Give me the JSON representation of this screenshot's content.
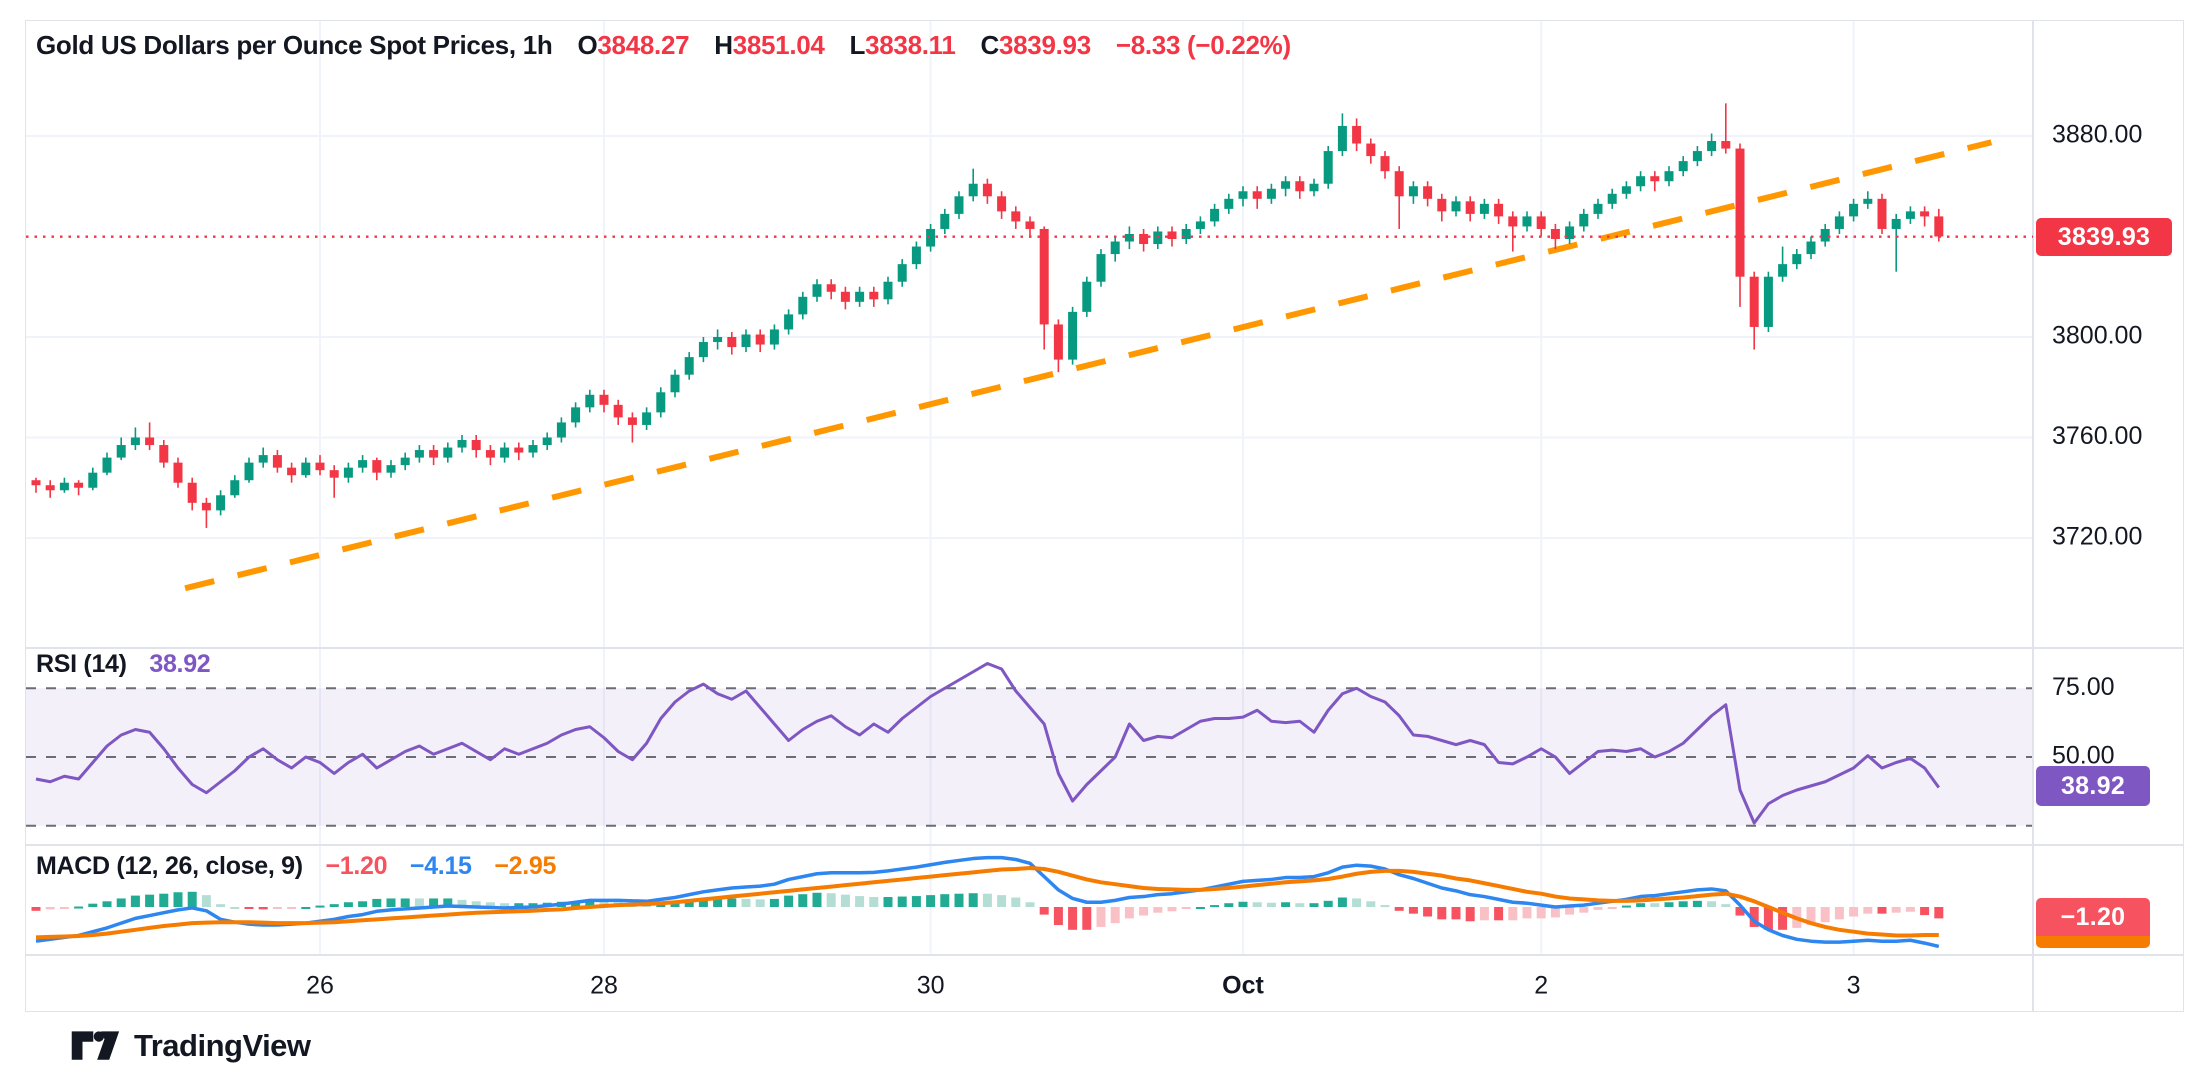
{
  "header": {
    "title": "Gold US Dollars per Ounce Spot Prices, 1h",
    "ohlc": {
      "o_label": "O",
      "o": "3848.27",
      "h_label": "H",
      "h": "3851.04",
      "l_label": "L",
      "l": "3838.11",
      "c_label": "C",
      "c": "3839.93",
      "change": "−8.33 (−0.22%)"
    }
  },
  "price_axis": {
    "ticks": [
      {
        "price": 3880,
        "label": "3880.00"
      },
      {
        "price": 3800,
        "label": "3800.00"
      },
      {
        "price": 3760,
        "label": "3760.00"
      },
      {
        "price": 3720,
        "label": "3720.00"
      }
    ],
    "last_price_badge": "3839.93"
  },
  "rsi_panel": {
    "label": "RSI (14)",
    "value": "38.92",
    "badge": "38.92",
    "levels": [
      {
        "value": 75,
        "label": "75.00"
      },
      {
        "value": 50,
        "label": "50.00"
      },
      {
        "value": 25,
        "label": ""
      }
    ]
  },
  "macd_panel": {
    "label": "MACD (12, 26, close, 9)",
    "hist_value": "−1.20",
    "macd_value": "−4.15",
    "signal_value": "−2.95",
    "badge": "−1.20"
  },
  "time_axis": {
    "ticks": [
      {
        "index": 20,
        "label": "26",
        "bold": false
      },
      {
        "index": 40,
        "label": "28",
        "bold": false
      },
      {
        "index": 63,
        "label": "30",
        "bold": false
      },
      {
        "index": 85,
        "label": "Oct",
        "bold": true
      },
      {
        "index": 106,
        "label": "2",
        "bold": false
      },
      {
        "index": 128,
        "label": "3",
        "bold": false
      }
    ]
  },
  "footer": {
    "brand": "TradingView"
  },
  "colors": {
    "up": "#089981",
    "down": "#f23645",
    "rsi_line": "#7e57c2",
    "rsi_band": "rgba(126,87,194,0.09)",
    "macd_line": "#2e86f0",
    "signal_line": "#f57c00",
    "hist_grow_above": "#22ab94",
    "hist_fall_above": "#b4ddd4",
    "hist_fall_below": "#f7525f",
    "hist_grow_below": "#f9c1c6",
    "trendline": "#ff9800",
    "last_price_line": "#f23645",
    "grid": "#f0f3fa",
    "separator": "#e0e3eb",
    "level_dash": "#6a6d78",
    "text": "#131722",
    "badge_price_bg": "#f23645",
    "badge_rsi_bg": "#7e57c2",
    "badge_macd_bg": "#f7525f",
    "badge_macd_strip": "#f57c00"
  },
  "chart_data": {
    "type": "candlestick",
    "title": "Gold US Dollars per Ounce Spot Prices, 1h",
    "timeframe": "1h",
    "price_range": [
      3676,
      3926
    ],
    "last_bar": {
      "open": 3848.27,
      "high": 3851.04,
      "low": 3838.11,
      "close": 3839.93
    },
    "last_price": 3839.93,
    "trendline": {
      "start": {
        "index": 10.5,
        "price": 3700
      },
      "end": {
        "index": 137.7,
        "price": 3877.5
      }
    },
    "candles": [
      [
        3743,
        3744,
        3738,
        3741
      ],
      [
        3741,
        3743,
        3736,
        3739
      ],
      [
        3739,
        3744,
        3738,
        3742
      ],
      [
        3742,
        3743,
        3737,
        3740
      ],
      [
        3740,
        3748,
        3739,
        3746
      ],
      [
        3746,
        3754,
        3745,
        3752
      ],
      [
        3752,
        3760,
        3751,
        3757
      ],
      [
        3757,
        3764,
        3755,
        3760
      ],
      [
        3760,
        3766,
        3755,
        3757
      ],
      [
        3757,
        3759,
        3748,
        3750
      ],
      [
        3750,
        3752,
        3740,
        3742
      ],
      [
        3742,
        3744,
        3731,
        3734
      ],
      [
        3734,
        3736,
        3724,
        3731
      ],
      [
        3731,
        3739,
        3729,
        3737
      ],
      [
        3737,
        3745,
        3736,
        3743
      ],
      [
        3743,
        3752,
        3742,
        3750
      ],
      [
        3750,
        3756,
        3748,
        3753
      ],
      [
        3753,
        3755,
        3746,
        3748
      ],
      [
        3748,
        3750,
        3742,
        3745
      ],
      [
        3745,
        3752,
        3744,
        3750
      ],
      [
        3750,
        3753,
        3745,
        3747
      ],
      [
        3747,
        3749,
        3736,
        3744
      ],
      [
        3744,
        3750,
        3742,
        3748
      ],
      [
        3748,
        3753,
        3746,
        3751
      ],
      [
        3751,
        3752,
        3743,
        3746
      ],
      [
        3746,
        3751,
        3744,
        3749
      ],
      [
        3749,
        3754,
        3747,
        3752
      ],
      [
        3752,
        3757,
        3750,
        3755
      ],
      [
        3755,
        3757,
        3749,
        3752
      ],
      [
        3752,
        3758,
        3750,
        3756
      ],
      [
        3756,
        3761,
        3754,
        3759
      ],
      [
        3759,
        3761,
        3752,
        3755
      ],
      [
        3755,
        3757,
        3749,
        3752
      ],
      [
        3752,
        3758,
        3750,
        3756
      ],
      [
        3756,
        3758,
        3751,
        3754
      ],
      [
        3754,
        3759,
        3752,
        3757
      ],
      [
        3757,
        3762,
        3755,
        3760
      ],
      [
        3760,
        3768,
        3758,
        3766
      ],
      [
        3766,
        3774,
        3764,
        3772
      ],
      [
        3772,
        3779,
        3770,
        3777
      ],
      [
        3777,
        3779,
        3770,
        3773
      ],
      [
        3773,
        3775,
        3765,
        3768
      ],
      [
        3768,
        3770,
        3758,
        3765
      ],
      [
        3765,
        3772,
        3763,
        3770
      ],
      [
        3770,
        3780,
        3768,
        3778
      ],
      [
        3778,
        3787,
        3776,
        3785
      ],
      [
        3785,
        3794,
        3783,
        3792
      ],
      [
        3792,
        3800,
        3790,
        3798
      ],
      [
        3798,
        3803,
        3795,
        3800
      ],
      [
        3800,
        3802,
        3793,
        3796
      ],
      [
        3796,
        3803,
        3794,
        3801
      ],
      [
        3801,
        3803,
        3794,
        3797
      ],
      [
        3797,
        3805,
        3795,
        3803
      ],
      [
        3803,
        3811,
        3801,
        3809
      ],
      [
        3809,
        3818,
        3807,
        3816
      ],
      [
        3816,
        3823,
        3814,
        3821
      ],
      [
        3821,
        3823,
        3815,
        3818
      ],
      [
        3818,
        3820,
        3811,
        3814
      ],
      [
        3814,
        3820,
        3812,
        3818
      ],
      [
        3818,
        3820,
        3812,
        3815
      ],
      [
        3815,
        3824,
        3813,
        3822
      ],
      [
        3822,
        3831,
        3820,
        3829
      ],
      [
        3829,
        3838,
        3827,
        3836
      ],
      [
        3836,
        3845,
        3834,
        3843
      ],
      [
        3843,
        3851,
        3841,
        3849
      ],
      [
        3849,
        3858,
        3847,
        3856
      ],
      [
        3856,
        3867,
        3854,
        3861
      ],
      [
        3861,
        3863,
        3853,
        3856
      ],
      [
        3856,
        3858,
        3847,
        3850
      ],
      [
        3850,
        3852,
        3843,
        3846
      ],
      [
        3846,
        3848,
        3840,
        3843
      ],
      [
        3843,
        3844,
        3795,
        3805
      ],
      [
        3805,
        3807,
        3786,
        3791
      ],
      [
        3791,
        3812,
        3789,
        3810
      ],
      [
        3810,
        3824,
        3808,
        3822
      ],
      [
        3822,
        3835,
        3820,
        3833
      ],
      [
        3833,
        3840,
        3830,
        3838
      ],
      [
        3838,
        3844,
        3835,
        3841
      ],
      [
        3841,
        3843,
        3834,
        3837
      ],
      [
        3837,
        3844,
        3835,
        3842
      ],
      [
        3842,
        3844,
        3836,
        3839
      ],
      [
        3839,
        3845,
        3837,
        3843
      ],
      [
        3843,
        3848,
        3841,
        3846
      ],
      [
        3846,
        3853,
        3844,
        3851
      ],
      [
        3851,
        3857,
        3849,
        3855
      ],
      [
        3855,
        3860,
        3852,
        3858
      ],
      [
        3858,
        3860,
        3851,
        3855
      ],
      [
        3855,
        3861,
        3853,
        3859
      ],
      [
        3859,
        3864,
        3856,
        3862
      ],
      [
        3862,
        3864,
        3855,
        3858
      ],
      [
        3858,
        3863,
        3856,
        3861
      ],
      [
        3861,
        3876,
        3859,
        3874
      ],
      [
        3874,
        3889,
        3872,
        3884
      ],
      [
        3884,
        3887,
        3874,
        3877
      ],
      [
        3877,
        3879,
        3869,
        3872
      ],
      [
        3872,
        3874,
        3863,
        3866
      ],
      [
        3866,
        3868,
        3843,
        3856
      ],
      [
        3856,
        3862,
        3853,
        3860
      ],
      [
        3860,
        3862,
        3852,
        3855
      ],
      [
        3855,
        3857,
        3846,
        3850
      ],
      [
        3850,
        3856,
        3848,
        3854
      ],
      [
        3854,
        3856,
        3846,
        3849
      ],
      [
        3849,
        3855,
        3847,
        3853
      ],
      [
        3853,
        3855,
        3845,
        3848
      ],
      [
        3848,
        3850,
        3834,
        3844
      ],
      [
        3844,
        3850,
        3842,
        3848
      ],
      [
        3848,
        3850,
        3840,
        3843
      ],
      [
        3843,
        3845,
        3835,
        3839
      ],
      [
        3839,
        3846,
        3837,
        3844
      ],
      [
        3844,
        3851,
        3842,
        3849
      ],
      [
        3849,
        3855,
        3847,
        3853
      ],
      [
        3853,
        3859,
        3851,
        3857
      ],
      [
        3857,
        3862,
        3855,
        3860
      ],
      [
        3860,
        3866,
        3858,
        3864
      ],
      [
        3864,
        3866,
        3858,
        3862
      ],
      [
        3862,
        3868,
        3860,
        3866
      ],
      [
        3866,
        3872,
        3864,
        3870
      ],
      [
        3870,
        3876,
        3868,
        3874
      ],
      [
        3874,
        3881,
        3872,
        3878
      ],
      [
        3878,
        3893,
        3873,
        3875
      ],
      [
        3875,
        3877,
        3812,
        3824
      ],
      [
        3824,
        3826,
        3795,
        3804
      ],
      [
        3804,
        3826,
        3802,
        3824
      ],
      [
        3824,
        3836,
        3822,
        3829
      ],
      [
        3829,
        3835,
        3827,
        3833
      ],
      [
        3833,
        3840,
        3831,
        3838
      ],
      [
        3838,
        3845,
        3836,
        3843
      ],
      [
        3843,
        3850,
        3841,
        3848
      ],
      [
        3848,
        3855,
        3846,
        3853
      ],
      [
        3853,
        3858,
        3851,
        3855
      ],
      [
        3855,
        3857,
        3841,
        3843
      ],
      [
        3843,
        3849,
        3826,
        3847
      ],
      [
        3847,
        3852,
        3845,
        3850
      ],
      [
        3850,
        3852,
        3844,
        3848
      ],
      [
        3848,
        3851,
        3838,
        3840
      ]
    ],
    "rsi": [
      42,
      41,
      43,
      42,
      48,
      54,
      58,
      60,
      59,
      53,
      46,
      40,
      37,
      41,
      45,
      50,
      53,
      49,
      46,
      50,
      48,
      44,
      48,
      51,
      46,
      49,
      52,
      54,
      51,
      53,
      55,
      52,
      49,
      53,
      51,
      53,
      55,
      58,
      60,
      61,
      57,
      52,
      49,
      55,
      64,
      70,
      74,
      76.5,
      73,
      71,
      74,
      68,
      62,
      56,
      60,
      63,
      65,
      61,
      58,
      62,
      59,
      64,
      68,
      72,
      75,
      78,
      81,
      84,
      82,
      74,
      68,
      62,
      44,
      34,
      40,
      45,
      50,
      62,
      56,
      57.5,
      57,
      60,
      63,
      64,
      64,
      64.5,
      67,
      63,
      62.5,
      63,
      59,
      67,
      73,
      75,
      72,
      70,
      65,
      58,
      57.5,
      56,
      54.5,
      56,
      54.5,
      48,
      47.5,
      50,
      53,
      50,
      44,
      48,
      52,
      52.5,
      52,
      53,
      50,
      52,
      55,
      60,
      65,
      69,
      38,
      26,
      33,
      36,
      38,
      39.5,
      41,
      43.5,
      46,
      50.5,
      46,
      48,
      49.5,
      46,
      38.92
    ],
    "rsi_last": 38.92,
    "macd": [
      -3.6,
      -3.4,
      -3.2,
      -3.0,
      -2.6,
      -2.2,
      -1.7,
      -1.2,
      -0.9,
      -0.6,
      -0.3,
      -0.1,
      -0.4,
      -1.3,
      -1.6,
      -1.8,
      -1.9,
      -1.9,
      -1.8,
      -1.7,
      -1.5,
      -1.3,
      -1.0,
      -0.8,
      -0.45,
      -0.3,
      -0.2,
      -0.1,
      0.0,
      0.1,
      0.05,
      0.0,
      -0.05,
      -0.1,
      -0.05,
      0.0,
      0.15,
      0.3,
      0.5,
      0.7,
      0.7,
      0.7,
      0.65,
      0.6,
      0.8,
      1.0,
      1.3,
      1.6,
      1.8,
      2.0,
      2.1,
      2.2,
      2.4,
      2.9,
      3.2,
      3.5,
      3.6,
      3.6,
      3.6,
      3.65,
      3.8,
      4.0,
      4.2,
      4.45,
      4.7,
      4.9,
      5.1,
      5.2,
      5.2,
      5.0,
      4.6,
      3.2,
      1.8,
      0.9,
      0.5,
      0.5,
      0.7,
      1.0,
      1.1,
      1.3,
      1.4,
      1.6,
      1.8,
      2.1,
      2.4,
      2.7,
      2.8,
      2.9,
      3.1,
      3.1,
      3.2,
      3.6,
      4.2,
      4.4,
      4.3,
      4.0,
      3.4,
      3.0,
      2.5,
      2.0,
      1.7,
      1.3,
      1.1,
      0.8,
      0.5,
      0.4,
      0.2,
      0.0,
      0.1,
      0.2,
      0.4,
      0.6,
      0.8,
      1.1,
      1.2,
      1.4,
      1.6,
      1.8,
      1.9,
      1.7,
      0.2,
      -1.5,
      -2.4,
      -3.0,
      -3.4,
      -3.6,
      -3.7,
      -3.7,
      -3.6,
      -3.5,
      -3.6,
      -3.6,
      -3.5,
      -3.8,
      -4.15
    ],
    "signal": [
      -3.2,
      -3.15,
      -3.1,
      -3.05,
      -2.95,
      -2.8,
      -2.6,
      -2.4,
      -2.2,
      -2.0,
      -1.85,
      -1.7,
      -1.65,
      -1.6,
      -1.6,
      -1.6,
      -1.65,
      -1.7,
      -1.7,
      -1.7,
      -1.65,
      -1.6,
      -1.5,
      -1.4,
      -1.3,
      -1.2,
      -1.1,
      -1.0,
      -0.9,
      -0.8,
      -0.7,
      -0.6,
      -0.55,
      -0.5,
      -0.45,
      -0.4,
      -0.3,
      -0.25,
      -0.1,
      0.0,
      0.1,
      0.2,
      0.25,
      0.3,
      0.4,
      0.5,
      0.65,
      0.8,
      0.95,
      1.1,
      1.25,
      1.4,
      1.55,
      1.7,
      1.85,
      2.0,
      2.15,
      2.3,
      2.45,
      2.6,
      2.75,
      2.9,
      3.05,
      3.2,
      3.35,
      3.5,
      3.65,
      3.8,
      3.95,
      4.0,
      4.1,
      4.0,
      3.7,
      3.3,
      2.9,
      2.6,
      2.4,
      2.2,
      2.0,
      1.9,
      1.85,
      1.8,
      1.8,
      1.9,
      2.0,
      2.15,
      2.3,
      2.45,
      2.6,
      2.7,
      2.8,
      2.95,
      3.2,
      3.5,
      3.7,
      3.8,
      3.8,
      3.7,
      3.5,
      3.3,
      3.0,
      2.8,
      2.5,
      2.2,
      1.9,
      1.6,
      1.4,
      1.1,
      0.9,
      0.8,
      0.7,
      0.65,
      0.65,
      0.7,
      0.8,
      0.9,
      1.0,
      1.15,
      1.3,
      1.4,
      1.1,
      0.6,
      0.0,
      -0.6,
      -1.2,
      -1.7,
      -2.1,
      -2.4,
      -2.6,
      -2.8,
      -2.9,
      -3.0,
      -3.0,
      -2.95,
      -2.95
    ],
    "macd_last": -4.15,
    "signal_last": -2.95,
    "hist_last": -1.2
  }
}
